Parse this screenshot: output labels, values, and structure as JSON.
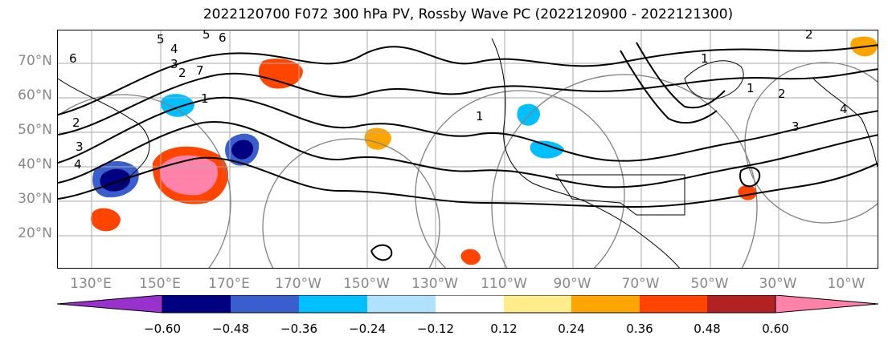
{
  "title": "2022120700 F072 300 hPa PV, Rossby Wave PC (2022120900 - 2022121300)",
  "map": {
    "lat_labels": [
      "70°N",
      "60°N",
      "50°N",
      "40°N",
      "30°N",
      "20°N"
    ],
    "lon_labels": [
      "130°E",
      "150°E",
      "170°E",
      "170°W",
      "150°W",
      "130°W",
      "110°W",
      "90°W",
      "70°W",
      "50°W",
      "30°W",
      "10°W"
    ],
    "contour_labels": [
      "6",
      "5",
      "4",
      "3",
      "2",
      "1",
      "1",
      "2",
      "2",
      "3",
      "4",
      "5",
      "6",
      "7",
      "4",
      "3",
      "2",
      "1",
      "1"
    ],
    "contour_color": "#000000",
    "gridline_color": "#aaaaaa",
    "circle_color": "#808080"
  },
  "colorbar": {
    "tick_labels": [
      "−0.60",
      "−0.48",
      "−0.36",
      "−0.24",
      "−0.12",
      "0.12",
      "0.24",
      "0.36",
      "0.48",
      "0.60"
    ],
    "colors": {
      "lt_neg060": "#9932CC",
      "neg060_neg048": "#000080",
      "neg048_neg036": "#3A5FCD",
      "neg036_neg024": "#00BFFF",
      "neg024_neg012": "#B0E2FF",
      "neg012_012": "#FFFFFF",
      "p012_p024": "#FFEC8B",
      "p024_p036": "#FFA500",
      "p036_p048": "#FF4500",
      "p048_p060": "#B22222",
      "gt_p060": "#FF82AB"
    }
  }
}
